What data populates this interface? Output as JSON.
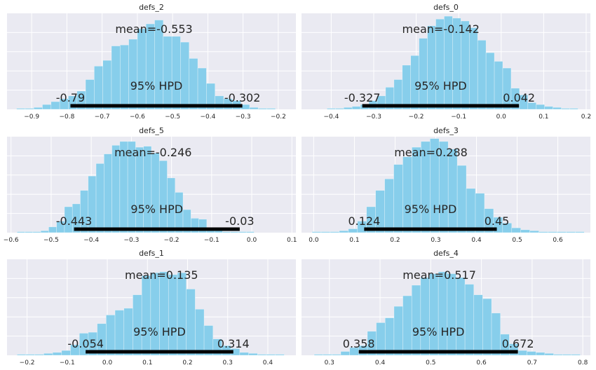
{
  "chart_data": [
    {
      "type": "bar",
      "title": "defs_2",
      "xlim": [
        -0.97,
        -0.15
      ],
      "xticks": [
        -0.9,
        -0.8,
        -0.7,
        -0.6,
        -0.5,
        -0.4,
        -0.3,
        -0.2
      ],
      "xtick_labels": [
        "−0.9",
        "−0.8",
        "−0.7",
        "−0.6",
        "−0.5",
        "−0.4",
        "−0.3",
        "−0.2"
      ],
      "bin_start": -0.943,
      "bin_width": 0.0245,
      "values": [
        1,
        1,
        2,
        5,
        8,
        11,
        14,
        19,
        31,
        45,
        51,
        66,
        67,
        73,
        84,
        89,
        93,
        76,
        76,
        70,
        53,
        43,
        27,
        14,
        11,
        9,
        5,
        2,
        1,
        1
      ],
      "mean_label": "mean=-0.553",
      "hpd_label": "95% HPD",
      "hpd": [
        -0.79,
        -0.302
      ],
      "hpd_low_label": "-0.79",
      "hpd_high_label": "-0.302"
    },
    {
      "type": "bar",
      "title": "defs_0",
      "xlim": [
        -0.47,
        0.21
      ],
      "xticks": [
        -0.4,
        -0.3,
        -0.2,
        -0.1,
        0.0,
        0.1,
        0.2
      ],
      "xtick_labels": [
        "−0.4",
        "−0.3",
        "−0.2",
        "−0.1",
        "0.0",
        "0.1",
        "0.2"
      ],
      "bin_start": -0.41,
      "bin_width": 0.0197,
      "values": [
        1,
        1,
        2,
        3,
        5,
        9,
        14,
        23,
        31,
        46,
        56,
        74,
        87,
        94,
        97,
        95,
        92,
        85,
        72,
        59,
        50,
        43,
        22,
        15,
        7,
        5,
        3,
        2,
        1,
        1
      ],
      "mean_label": "mean=-0.142",
      "hpd_label": "95% HPD",
      "hpd": [
        -0.327,
        0.042
      ],
      "hpd_low_label": "-0.327",
      "hpd_high_label": "0.042"
    },
    {
      "type": "bar",
      "title": "defs_5",
      "xlim": [
        -0.61,
        0.11
      ],
      "xticks": [
        -0.6,
        -0.5,
        -0.4,
        -0.3,
        -0.2,
        -0.1,
        0.0,
        0.1
      ],
      "xtick_labels": [
        "−0.6",
        "−0.5",
        "−0.4",
        "−0.3",
        "−0.2",
        "−0.1",
        "0.0",
        "0.1"
      ],
      "bin_start": -0.585,
      "bin_width": 0.0197,
      "values": [
        1,
        1,
        1,
        2,
        6,
        12,
        27,
        30,
        44,
        59,
        72,
        82,
        91,
        95,
        95,
        89,
        90,
        83,
        75,
        57,
        42,
        24,
        15,
        14,
        3,
        2,
        1,
        1,
        1,
        1
      ],
      "mean_label": "mean=-0.246",
      "hpd_label": "95% HPD",
      "hpd": [
        -0.443,
        -0.03
      ],
      "hpd_low_label": "-0.443",
      "hpd_high_label": "-0.03"
    },
    {
      "type": "bar",
      "title": "defs_3",
      "xlim": [
        -0.03,
        0.68
      ],
      "xticks": [
        0.0,
        0.1,
        0.2,
        0.3,
        0.4,
        0.5,
        0.6
      ],
      "xtick_labels": [
        "0.0",
        "0.1",
        "0.2",
        "0.3",
        "0.4",
        "0.5",
        "0.6"
      ],
      "bin_start": -0.004,
      "bin_width": 0.0223,
      "values": [
        1,
        1,
        1,
        2,
        4,
        12,
        27,
        44,
        56,
        71,
        79,
        89,
        95,
        98,
        95,
        87,
        70,
        46,
        41,
        25,
        16,
        10,
        5,
        3,
        2,
        1,
        1,
        1,
        1,
        1
      ],
      "mean_label": "mean=0.288",
      "hpd_label": "95% HPD",
      "hpd": [
        0.124,
        0.45
      ],
      "hpd_low_label": "0.124",
      "hpd_high_label": "0.45"
    },
    {
      "type": "bar",
      "title": "defs_1",
      "xlim": [
        -0.25,
        0.47
      ],
      "xticks": [
        -0.2,
        -0.1,
        0.0,
        0.1,
        0.2,
        0.3,
        0.4
      ],
      "xtick_labels": [
        "−0.2",
        "−0.1",
        "0.0",
        "0.1",
        "0.2",
        "0.3",
        "0.4"
      ],
      "bin_start": -0.225,
      "bin_width": 0.0222,
      "values": [
        1,
        1,
        1,
        2,
        3,
        5,
        11,
        23,
        24,
        33,
        42,
        47,
        49,
        63,
        83,
        86,
        87,
        84,
        86,
        69,
        48,
        31,
        17,
        10,
        7,
        3,
        2,
        1,
        1,
        1
      ],
      "mean_label": "mean=0.135",
      "hpd_label": "95% HPD",
      "hpd": [
        -0.054,
        0.314
      ],
      "hpd_low_label": "-0.054",
      "hpd_high_label": "0.314"
    },
    {
      "type": "bar",
      "title": "defs_4",
      "xlim": [
        0.245,
        0.815
      ],
      "xticks": [
        0.3,
        0.4,
        0.5,
        0.6,
        0.7,
        0.8
      ],
      "xtick_labels": [
        "0.3",
        "0.4",
        "0.5",
        "0.6",
        "0.7",
        "0.8"
      ],
      "bin_start": 0.27,
      "bin_width": 0.0175,
      "values": [
        1,
        1,
        1,
        4,
        8,
        10,
        25,
        34,
        39,
        51,
        62,
        73,
        81,
        85,
        87,
        85,
        81,
        74,
        63,
        59,
        44,
        22,
        12,
        5,
        4,
        3,
        2,
        1,
        1,
        1
      ],
      "mean_label": "mean=0.517",
      "hpd_label": "95% HPD",
      "hpd": [
        0.358,
        0.672
      ],
      "hpd_low_label": "0.358",
      "hpd_high_label": "0.672"
    }
  ],
  "colors": {
    "bar": "#87ceeb",
    "axes_bg": "#eaeaf2",
    "grid": "#ffffff",
    "text": "#262626",
    "hpd_line": "#000000"
  }
}
